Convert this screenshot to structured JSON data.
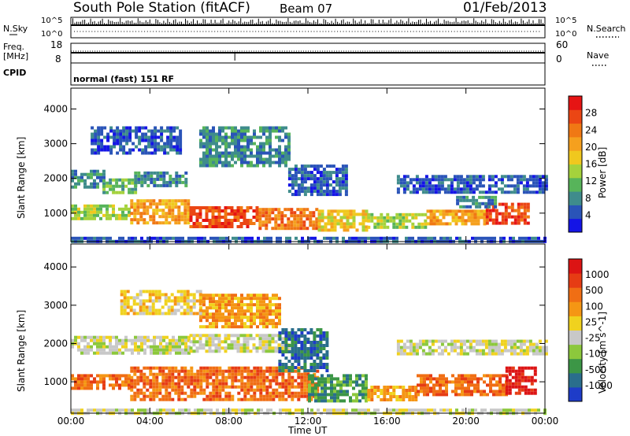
{
  "header": {
    "title": "South Pole Station (fitACF)",
    "beam": "Beam 07",
    "date": "01/Feb/2013"
  },
  "params": {
    "nsky_label": "N.Sky",
    "nsky_top": "10^5",
    "nsky_bottom": "10^0",
    "nsearch_label": "N.Search",
    "nsearch_top": "10^5",
    "nsearch_bottom": "10^0",
    "freq_label": "Freq.",
    "freq_unit": "[MHz]",
    "freq_top": "18",
    "freq_bottom": "8",
    "nave_label": "Nave",
    "nave_top": "60",
    "nave_bottom": "0",
    "cpid_label": "CPID",
    "cpid_value": "normal (fast) 151 RF"
  },
  "chart_data": [
    {
      "type": "heatmap",
      "title": "",
      "xlabel": "",
      "ylabel": "Slant Range [km]",
      "x_ticks": [
        "00:00",
        "04:00",
        "08:00",
        "12:00",
        "16:00",
        "20:00",
        "00:00"
      ],
      "y_ticks": [
        "1000",
        "2000",
        "3000",
        "4000"
      ],
      "ylim": [
        180,
        4600
      ],
      "colorbar": {
        "title": "Power [dB]",
        "labels": [
          "4",
          "8",
          "12",
          "16",
          "20",
          "24",
          "28"
        ],
        "colors": [
          "#1414e6",
          "#2a54b8",
          "#3f8c8c",
          "#57b45a",
          "#a5d23c",
          "#f0c81e",
          "#f5a01e",
          "#f07814",
          "#eb4614",
          "#e61414"
        ]
      },
      "bands": [
        {
          "hours": [
            0.0,
            24.0
          ],
          "range": [
            200,
            320
          ],
          "level": 1
        },
        {
          "hours": [
            0.0,
            1.6
          ],
          "range": [
            1750,
            2250
          ],
          "level": 2
        },
        {
          "hours": [
            1.6,
            3.2
          ],
          "range": [
            1550,
            2000
          ],
          "level": 3
        },
        {
          "hours": [
            3.2,
            5.8
          ],
          "range": [
            1750,
            2200
          ],
          "level": 2
        },
        {
          "hours": [
            0.0,
            3.0
          ],
          "range": [
            800,
            1250
          ],
          "level": 4
        },
        {
          "hours": [
            3.0,
            6.0
          ],
          "range": [
            700,
            1400
          ],
          "level": 6
        },
        {
          "hours": [
            6.0,
            9.5
          ],
          "range": [
            600,
            1200
          ],
          "level": 8
        },
        {
          "hours": [
            9.5,
            12.5
          ],
          "range": [
            600,
            1150
          ],
          "level": 7
        },
        {
          "hours": [
            12.5,
            15.0
          ],
          "range": [
            550,
            1100
          ],
          "level": 5
        },
        {
          "hours": [
            15.0,
            18.0
          ],
          "range": [
            600,
            1000
          ],
          "level": 4
        },
        {
          "hours": [
            18.0,
            21.0
          ],
          "range": [
            650,
            1100
          ],
          "level": 6
        },
        {
          "hours": [
            21.0,
            23.2
          ],
          "range": [
            700,
            1300
          ],
          "level": 8
        },
        {
          "hours": [
            1.0,
            5.5
          ],
          "range": [
            2700,
            3500
          ],
          "level": 1
        },
        {
          "hours": [
            6.5,
            11.0
          ],
          "range": [
            2400,
            3500
          ],
          "level": 2
        },
        {
          "hours": [
            11.0,
            14.0
          ],
          "range": [
            1500,
            2400
          ],
          "level": 1
        },
        {
          "hours": [
            16.5,
            24.0
          ],
          "range": [
            1600,
            2100
          ],
          "level": 1
        },
        {
          "hours": [
            19.5,
            21.5
          ],
          "range": [
            1150,
            1500
          ],
          "level": 2
        }
      ]
    },
    {
      "type": "heatmap",
      "title": "",
      "xlabel": "Time UT",
      "ylabel": "Slant Range [km]",
      "x_ticks": [
        "00:00",
        "04:00",
        "08:00",
        "12:00",
        "16:00",
        "20:00",
        "00:00"
      ],
      "y_ticks": [
        "1000",
        "2000",
        "3000",
        "4000"
      ],
      "ylim": [
        180,
        4600
      ],
      "colorbar": {
        "title": "Velocity [m s^-1]",
        "labels": [
          "1000",
          "500",
          "100",
          "25",
          "-25",
          "-100",
          "-500",
          "-1000"
        ],
        "colors": [
          "#1e3cc8",
          "#2a6e8c",
          "#3c9646",
          "#8cc83c",
          "#c8c8c8",
          "#f0d21e",
          "#f59614",
          "#f06e14",
          "#e63c14",
          "#dc1414"
        ]
      },
      "bands": [
        {
          "hours": [
            0.0,
            24.0
          ],
          "range": [
            200,
            300
          ],
          "level": 4
        },
        {
          "hours": [
            0.0,
            6.0
          ],
          "range": [
            1750,
            2200
          ],
          "level": 4
        },
        {
          "hours": [
            6.0,
            11.0
          ],
          "range": [
            1800,
            2250
          ],
          "level": 4
        },
        {
          "hours": [
            16.5,
            24.0
          ],
          "range": [
            1700,
            2100
          ],
          "level": 4
        },
        {
          "hours": [
            0.0,
            3.0
          ],
          "range": [
            800,
            1200
          ],
          "level": 7
        },
        {
          "hours": [
            3.0,
            12.5
          ],
          "range": [
            550,
            1400
          ],
          "level": 7
        },
        {
          "hours": [
            12.0,
            15.0
          ],
          "range": [
            500,
            1200
          ],
          "level": 2
        },
        {
          "hours": [
            15.0,
            17.5
          ],
          "range": [
            550,
            900
          ],
          "level": 6
        },
        {
          "hours": [
            17.5,
            22.0
          ],
          "range": [
            650,
            1200
          ],
          "level": 7
        },
        {
          "hours": [
            22.0,
            23.5
          ],
          "range": [
            700,
            1400
          ],
          "level": 9
        },
        {
          "hours": [
            6.5,
            10.5
          ],
          "range": [
            2400,
            3300
          ],
          "level": 6
        },
        {
          "hours": [
            10.5,
            13.0
          ],
          "range": [
            1300,
            2400
          ],
          "level": 1
        },
        {
          "hours": [
            2.5,
            6.5
          ],
          "range": [
            2800,
            3400
          ],
          "level": 5
        }
      ]
    }
  ]
}
